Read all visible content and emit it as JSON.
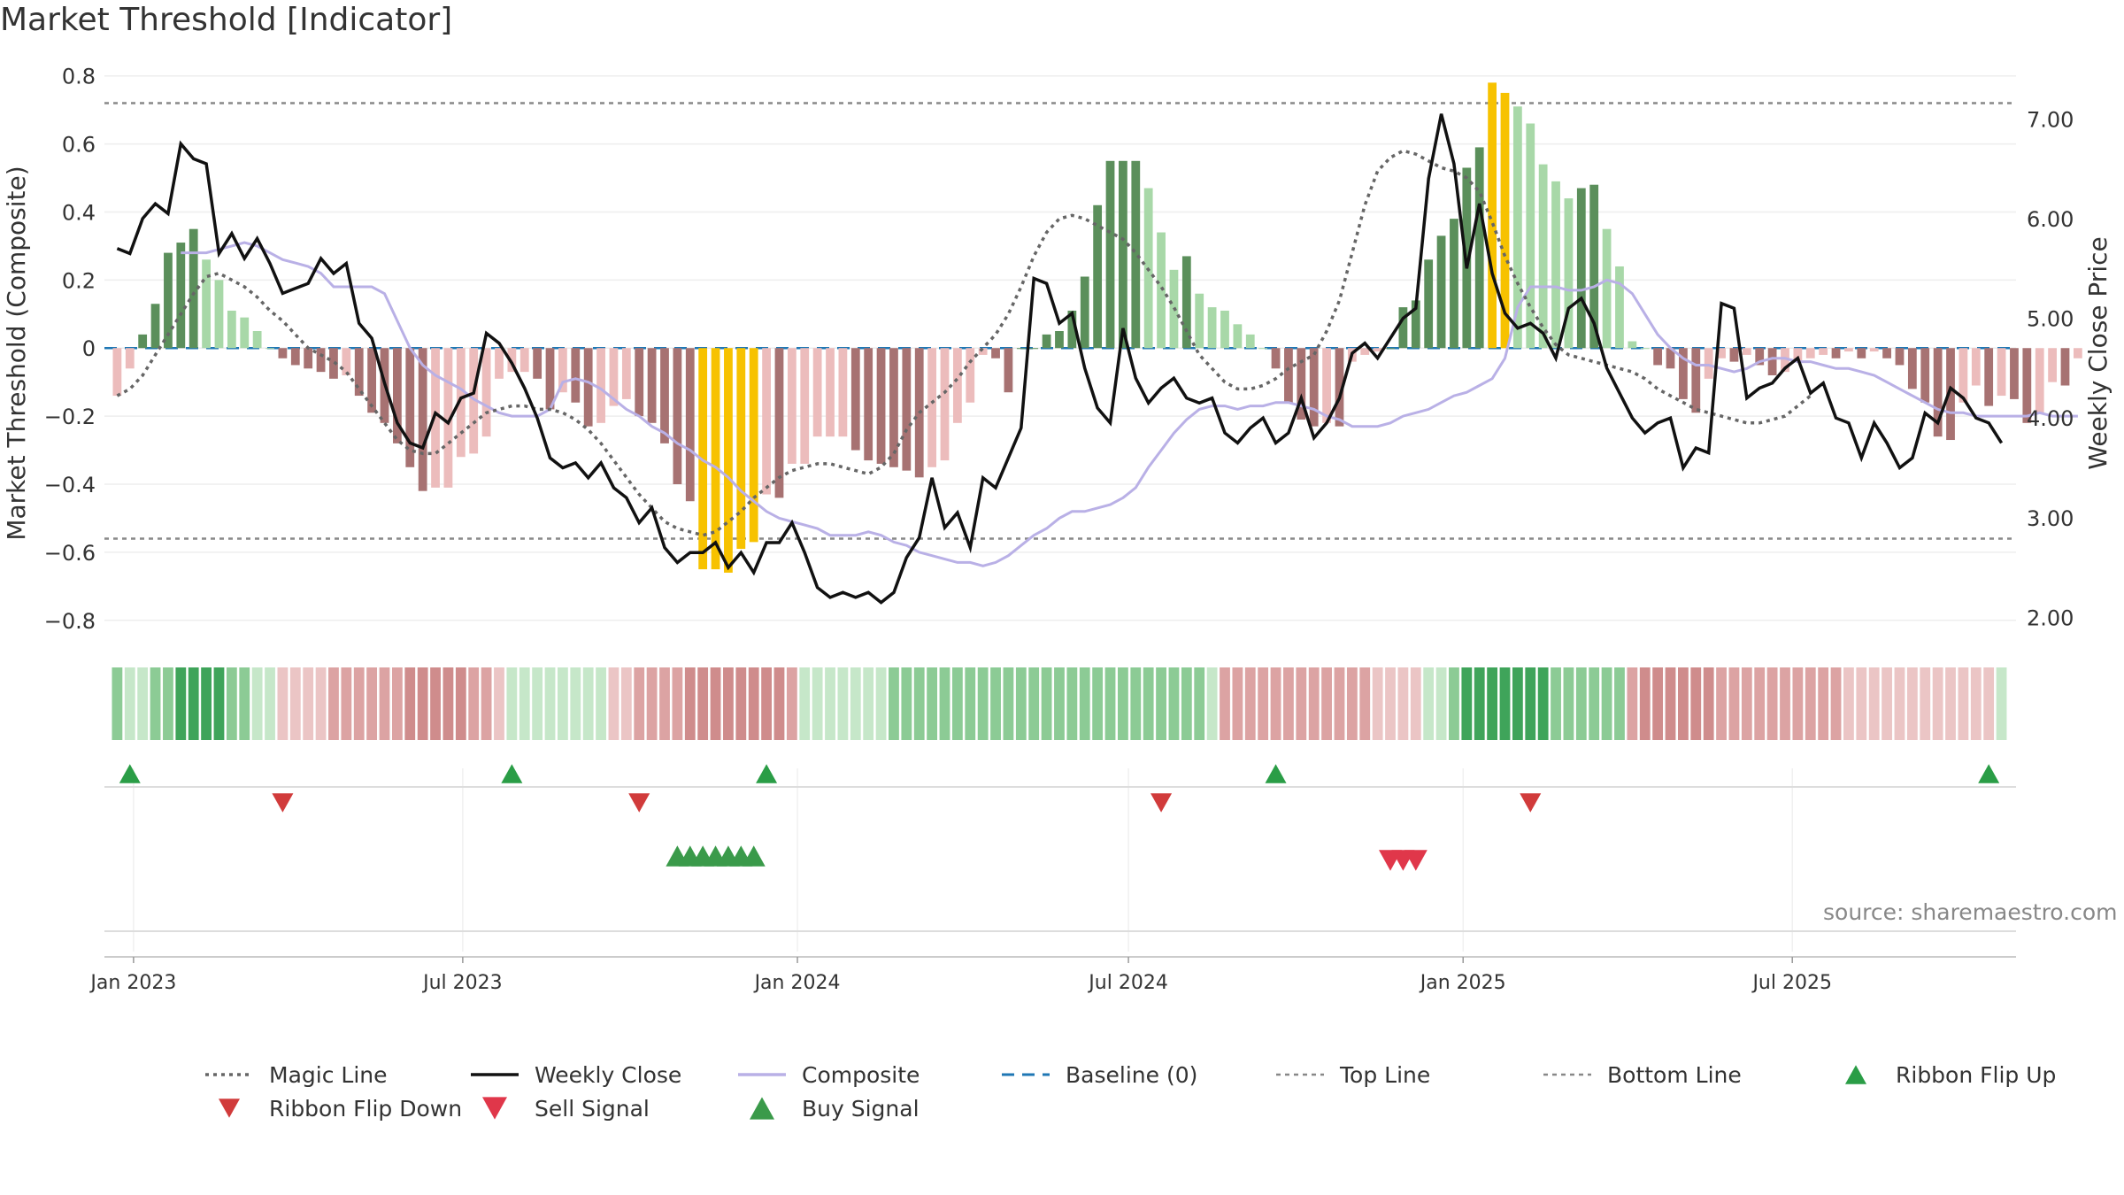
{
  "title": "Market Threshold [Indicator]",
  "source": "source: sharemaestro.com",
  "colors": {
    "magic_line": "#666666",
    "weekly_close": "#111111",
    "composite": "#b9b0e6",
    "baseline": "#1f77b4",
    "threshold_lines": "#888888",
    "bar_strong_pos": "#5b8f5b",
    "bar_weak_pos": "#a8d8a8",
    "bar_strong_neg": "#a77272",
    "bar_weak_neg": "#ecbcbc",
    "bar_extreme": "#f7c200",
    "flip_up": "#2a9d46",
    "flip_down": "#d13b3b",
    "sell": "#e0374a",
    "buy": "#3a9a4a"
  },
  "chart_data": {
    "type": "bar",
    "title": "Market Threshold [Indicator]",
    "ylabel": "Market Threshold (Composite)",
    "y2label": "Weekly Close Price",
    "ylim": [
      -0.85,
      0.82
    ],
    "y2lim": [
      1.8,
      7.5
    ],
    "yticks": [
      -0.8,
      -0.6,
      -0.4,
      -0.2,
      0,
      0.2,
      0.4,
      0.6,
      0.8
    ],
    "ytick_labels": [
      "−0.8",
      "−0.6",
      "−0.4",
      "−0.2",
      "0",
      "0.2",
      "0.4",
      "0.6",
      "0.8"
    ],
    "y2ticks": [
      2.0,
      3.0,
      4.0,
      5.0,
      6.0,
      7.0
    ],
    "y2tick_labels": [
      "2.00",
      "3.00",
      "4.00",
      "5.00",
      "6.00",
      "7.00"
    ],
    "x_start": "2022-12-16",
    "x_end": "2025-11-01",
    "xticks": [
      "2023-01-01",
      "2023-07-01",
      "2024-01-01",
      "2024-07-01",
      "2025-01-01",
      "2025-07-01"
    ],
    "xtick_labels": [
      "Jan 2023",
      "Jul 2023",
      "Jan 2024",
      "Jul 2024",
      "Jan 2025",
      "Jul 2025"
    ],
    "top_line": 0.72,
    "bottom_line": -0.56,
    "baseline": 0,
    "grid": true,
    "legend_position": "bottom",
    "series": [
      {
        "name": "Composite",
        "type": "bar",
        "values": [
          -0.14,
          -0.06,
          0.04,
          0.13,
          0.28,
          0.31,
          0.35,
          0.26,
          0.2,
          0.11,
          0.09,
          0.05,
          0.0,
          -0.03,
          -0.05,
          -0.06,
          -0.07,
          -0.09,
          -0.08,
          -0.14,
          -0.19,
          -0.22,
          -0.28,
          -0.35,
          -0.42,
          -0.41,
          -0.41,
          -0.32,
          -0.31,
          -0.26,
          -0.09,
          -0.07,
          -0.07,
          -0.09,
          -0.18,
          -0.13,
          -0.16,
          -0.23,
          -0.22,
          -0.17,
          -0.15,
          -0.2,
          -0.22,
          -0.28,
          -0.4,
          -0.45,
          -0.65,
          -0.65,
          -0.66,
          -0.59,
          -0.57,
          -0.43,
          -0.44,
          -0.34,
          -0.34,
          -0.26,
          -0.26,
          -0.26,
          -0.3,
          -0.33,
          -0.34,
          -0.35,
          -0.36,
          -0.38,
          -0.35,
          -0.33,
          -0.22,
          -0.16,
          -0.02,
          -0.03,
          -0.13,
          0.0,
          0.0,
          0.04,
          0.05,
          0.11,
          0.21,
          0.42,
          0.55,
          0.55,
          0.55,
          0.47,
          0.34,
          0.23,
          0.27,
          0.16,
          0.12,
          0.11,
          0.07,
          0.04,
          0.0,
          -0.06,
          -0.16,
          -0.21,
          -0.23,
          -0.22,
          -0.23,
          -0.04,
          -0.02,
          -0.01,
          0.0,
          0.12,
          0.14,
          0.26,
          0.33,
          0.38,
          0.53,
          0.59,
          0.78,
          0.75,
          0.71,
          0.66,
          0.54,
          0.49,
          0.44,
          0.47,
          0.48,
          0.35,
          0.24,
          0.02,
          0.0,
          -0.05,
          -0.06,
          -0.15,
          -0.19,
          -0.09,
          -0.03,
          -0.04,
          -0.02,
          -0.05,
          -0.08,
          -0.07,
          -0.04,
          -0.03,
          -0.02,
          -0.03,
          -0.01,
          -0.03,
          -0.01,
          -0.03,
          -0.05,
          -0.12,
          -0.16,
          -0.26,
          -0.27,
          -0.16,
          -0.11,
          -0.17,
          -0.14,
          -0.15,
          -0.22,
          -0.19,
          -0.1,
          -0.11,
          -0.03
        ]
      },
      {
        "name": "Composite",
        "type": "line",
        "values": [
          0.28,
          0.28,
          0.28,
          0.29,
          0.3,
          0.31,
          0.3,
          0.28,
          0.26,
          0.25,
          0.24,
          0.22,
          0.18,
          0.18,
          0.18,
          0.18,
          0.16,
          0.08,
          0.0,
          -0.05,
          -0.08,
          -0.1,
          -0.12,
          -0.15,
          -0.17,
          -0.19,
          -0.2,
          -0.2,
          -0.2,
          -0.18,
          -0.1,
          -0.09,
          -0.1,
          -0.12,
          -0.15,
          -0.18,
          -0.2,
          -0.23,
          -0.25,
          -0.28,
          -0.3,
          -0.33,
          -0.35,
          -0.38,
          -0.42,
          -0.45,
          -0.48,
          -0.5,
          -0.51,
          -0.52,
          -0.53,
          -0.55,
          -0.55,
          -0.55,
          -0.54,
          -0.55,
          -0.57,
          -0.58,
          -0.6,
          -0.61,
          -0.62,
          -0.63,
          -0.63,
          -0.64,
          -0.63,
          -0.61,
          -0.58,
          -0.55,
          -0.53,
          -0.5,
          -0.48,
          -0.48,
          -0.47,
          -0.46,
          -0.44,
          -0.41,
          -0.35,
          -0.3,
          -0.25,
          -0.21,
          -0.18,
          -0.17,
          -0.17,
          -0.18,
          -0.17,
          -0.17,
          -0.16,
          -0.16,
          -0.17,
          -0.18,
          -0.2,
          -0.21,
          -0.23,
          -0.23,
          -0.23,
          -0.22,
          -0.2,
          -0.19,
          -0.18,
          -0.16,
          -0.14,
          -0.13,
          -0.11,
          -0.09,
          -0.03,
          0.12,
          0.18,
          0.18,
          0.18,
          0.17,
          0.17,
          0.18,
          0.2,
          0.19,
          0.16,
          0.1,
          0.04,
          0.0,
          -0.03,
          -0.05,
          -0.05,
          -0.06,
          -0.07,
          -0.06,
          -0.04,
          -0.03,
          -0.03,
          -0.04,
          -0.04,
          -0.05,
          -0.06,
          -0.06,
          -0.07,
          -0.08,
          -0.1,
          -0.12,
          -0.14,
          -0.16,
          -0.18,
          -0.19,
          -0.19,
          -0.2,
          -0.2,
          -0.2,
          -0.2,
          -0.2,
          -0.19,
          -0.2,
          -0.2,
          -0.2
        ]
      },
      {
        "name": "Magic Line",
        "type": "line",
        "values": [
          -0.14,
          -0.12,
          -0.08,
          -0.02,
          0.04,
          0.1,
          0.16,
          0.21,
          0.22,
          0.2,
          0.18,
          0.15,
          0.11,
          0.08,
          0.04,
          0.0,
          -0.02,
          -0.04,
          -0.07,
          -0.12,
          -0.17,
          -0.22,
          -0.27,
          -0.3,
          -0.31,
          -0.31,
          -0.28,
          -0.25,
          -0.22,
          -0.19,
          -0.18,
          -0.17,
          -0.17,
          -0.18,
          -0.18,
          -0.19,
          -0.21,
          -0.24,
          -0.28,
          -0.33,
          -0.38,
          -0.43,
          -0.47,
          -0.51,
          -0.53,
          -0.54,
          -0.55,
          -0.54,
          -0.51,
          -0.48,
          -0.44,
          -0.41,
          -0.38,
          -0.36,
          -0.35,
          -0.34,
          -0.34,
          -0.35,
          -0.36,
          -0.37,
          -0.35,
          -0.31,
          -0.24,
          -0.19,
          -0.16,
          -0.13,
          -0.09,
          -0.04,
          0.0,
          0.04,
          0.1,
          0.18,
          0.27,
          0.34,
          0.38,
          0.39,
          0.38,
          0.36,
          0.34,
          0.32,
          0.28,
          0.23,
          0.18,
          0.12,
          0.05,
          -0.02,
          -0.06,
          -0.1,
          -0.12,
          -0.12,
          -0.11,
          -0.09,
          -0.06,
          -0.04,
          -0.02,
          0.05,
          0.14,
          0.28,
          0.42,
          0.52,
          0.56,
          0.58,
          0.57,
          0.55,
          0.53,
          0.52,
          0.5,
          0.46,
          0.37,
          0.27,
          0.19,
          0.12,
          0.06,
          0.01,
          -0.02,
          -0.03,
          -0.04,
          -0.05,
          -0.06,
          -0.07,
          -0.09,
          -0.12,
          -0.14,
          -0.16,
          -0.18,
          -0.19,
          -0.2,
          -0.21,
          -0.22,
          -0.22,
          -0.21,
          -0.2,
          -0.17,
          -0.14
        ]
      },
      {
        "name": "Weekly Close",
        "type": "line",
        "axis": "right",
        "values": [
          5.7,
          5.65,
          6.0,
          6.15,
          6.05,
          6.75,
          6.6,
          6.55,
          5.65,
          5.85,
          5.6,
          5.8,
          5.55,
          5.25,
          5.3,
          5.35,
          5.6,
          5.45,
          5.55,
          4.95,
          4.8,
          4.35,
          3.95,
          3.75,
          3.7,
          4.05,
          3.95,
          4.2,
          4.25,
          4.85,
          4.75,
          4.55,
          4.3,
          4.0,
          3.6,
          3.5,
          3.55,
          3.4,
          3.55,
          3.3,
          3.2,
          2.95,
          3.1,
          2.7,
          2.55,
          2.65,
          2.65,
          2.75,
          2.5,
          2.65,
          2.45,
          2.75,
          2.75,
          2.95,
          2.65,
          2.3,
          2.2,
          2.25,
          2.2,
          2.25,
          2.15,
          2.25,
          2.6,
          2.8,
          3.4,
          2.9,
          3.05,
          2.7,
          3.4,
          3.3,
          3.6,
          3.9,
          5.4,
          5.35,
          4.95,
          5.05,
          4.5,
          4.1,
          3.95,
          4.9,
          4.4,
          4.15,
          4.3,
          4.4,
          4.2,
          4.15,
          4.2,
          3.85,
          3.75,
          3.9,
          4.0,
          3.75,
          3.85,
          4.2,
          3.8,
          3.95,
          4.2,
          4.65,
          4.75,
          4.6,
          4.8,
          5.0,
          5.1,
          6.4,
          7.05,
          6.55,
          5.5,
          6.15,
          5.45,
          5.05,
          4.9,
          4.95,
          4.85,
          4.6,
          5.1,
          5.2,
          4.95,
          4.5,
          4.25,
          4.0,
          3.85,
          3.95,
          4.0,
          3.5,
          3.7,
          3.65,
          5.15,
          5.1,
          4.2,
          4.3,
          4.35,
          4.5,
          4.6,
          4.25,
          4.35,
          4.0,
          3.95,
          3.6,
          3.95,
          3.75,
          3.5,
          3.6,
          4.05,
          3.95,
          4.3,
          4.2,
          4.0,
          3.95,
          3.75
        ]
      }
    ],
    "signals": {
      "ribbon_flip_up": [
        "2022-12-30",
        "2023-07-28",
        "2023-12-15",
        "2024-09-20",
        "2025-10-17"
      ],
      "ribbon_flip_down": [
        "2023-03-24",
        "2023-10-06",
        "2024-07-19",
        "2025-02-07"
      ],
      "buy_signal": [
        "2023-10-27",
        "2023-11-03",
        "2023-11-10",
        "2023-11-17",
        "2023-11-24",
        "2023-12-01",
        "2023-12-08"
      ],
      "sell_signal": [
        "2024-11-22",
        "2024-11-29",
        "2024-12-06"
      ]
    },
    "ribbon": [
      2,
      1,
      1,
      2,
      2,
      3,
      3,
      3,
      3,
      2,
      2,
      1,
      1,
      -1,
      -1,
      -1,
      -1,
      -2,
      -2,
      -2,
      -2,
      -2,
      -2,
      -3,
      -3,
      -3,
      -3,
      -3,
      -2,
      -2,
      -1,
      1,
      1,
      1,
      1,
      1,
      1,
      1,
      1,
      -1,
      -1,
      -2,
      -2,
      -2,
      -2,
      -3,
      -3,
      -3,
      -3,
      -3,
      -3,
      -3,
      -3,
      -2,
      1,
      1,
      1,
      1,
      1,
      1,
      1,
      2,
      2,
      2,
      2,
      2,
      2,
      2,
      2,
      2,
      2,
      2,
      2,
      2,
      2,
      2,
      2,
      2,
      2,
      2,
      2,
      2,
      2,
      2,
      2,
      2,
      1,
      -2,
      -2,
      -2,
      -2,
      -2,
      -2,
      -2,
      -2,
      -2,
      -2,
      -2,
      -2,
      -1,
      -1,
      -1,
      -1,
      1,
      1,
      2,
      3,
      3,
      3,
      3,
      3,
      3,
      3,
      2,
      2,
      2,
      2,
      2,
      2,
      -2,
      -3,
      -3,
      -3,
      -3,
      -3,
      -3,
      -2,
      -2,
      -2,
      -2,
      -2,
      -2,
      -2,
      -2,
      -2,
      -2,
      -1,
      -1,
      -1,
      -1,
      -1,
      -1,
      -1,
      -1,
      -1,
      -1,
      -1,
      -1,
      1
    ]
  },
  "legend": [
    {
      "key": "magic",
      "label": "Magic Line"
    },
    {
      "key": "close",
      "label": "Weekly Close"
    },
    {
      "key": "composite",
      "label": "Composite"
    },
    {
      "key": "baseline",
      "label": "Baseline (0)"
    },
    {
      "key": "top",
      "label": "Top Line"
    },
    {
      "key": "bottom",
      "label": "Bottom Line"
    },
    {
      "key": "flip_up",
      "label": "Ribbon Flip Up"
    },
    {
      "key": "flip_down",
      "label": "Ribbon Flip Down"
    },
    {
      "key": "sell",
      "label": "Sell Signal"
    },
    {
      "key": "buy",
      "label": "Buy Signal"
    }
  ]
}
